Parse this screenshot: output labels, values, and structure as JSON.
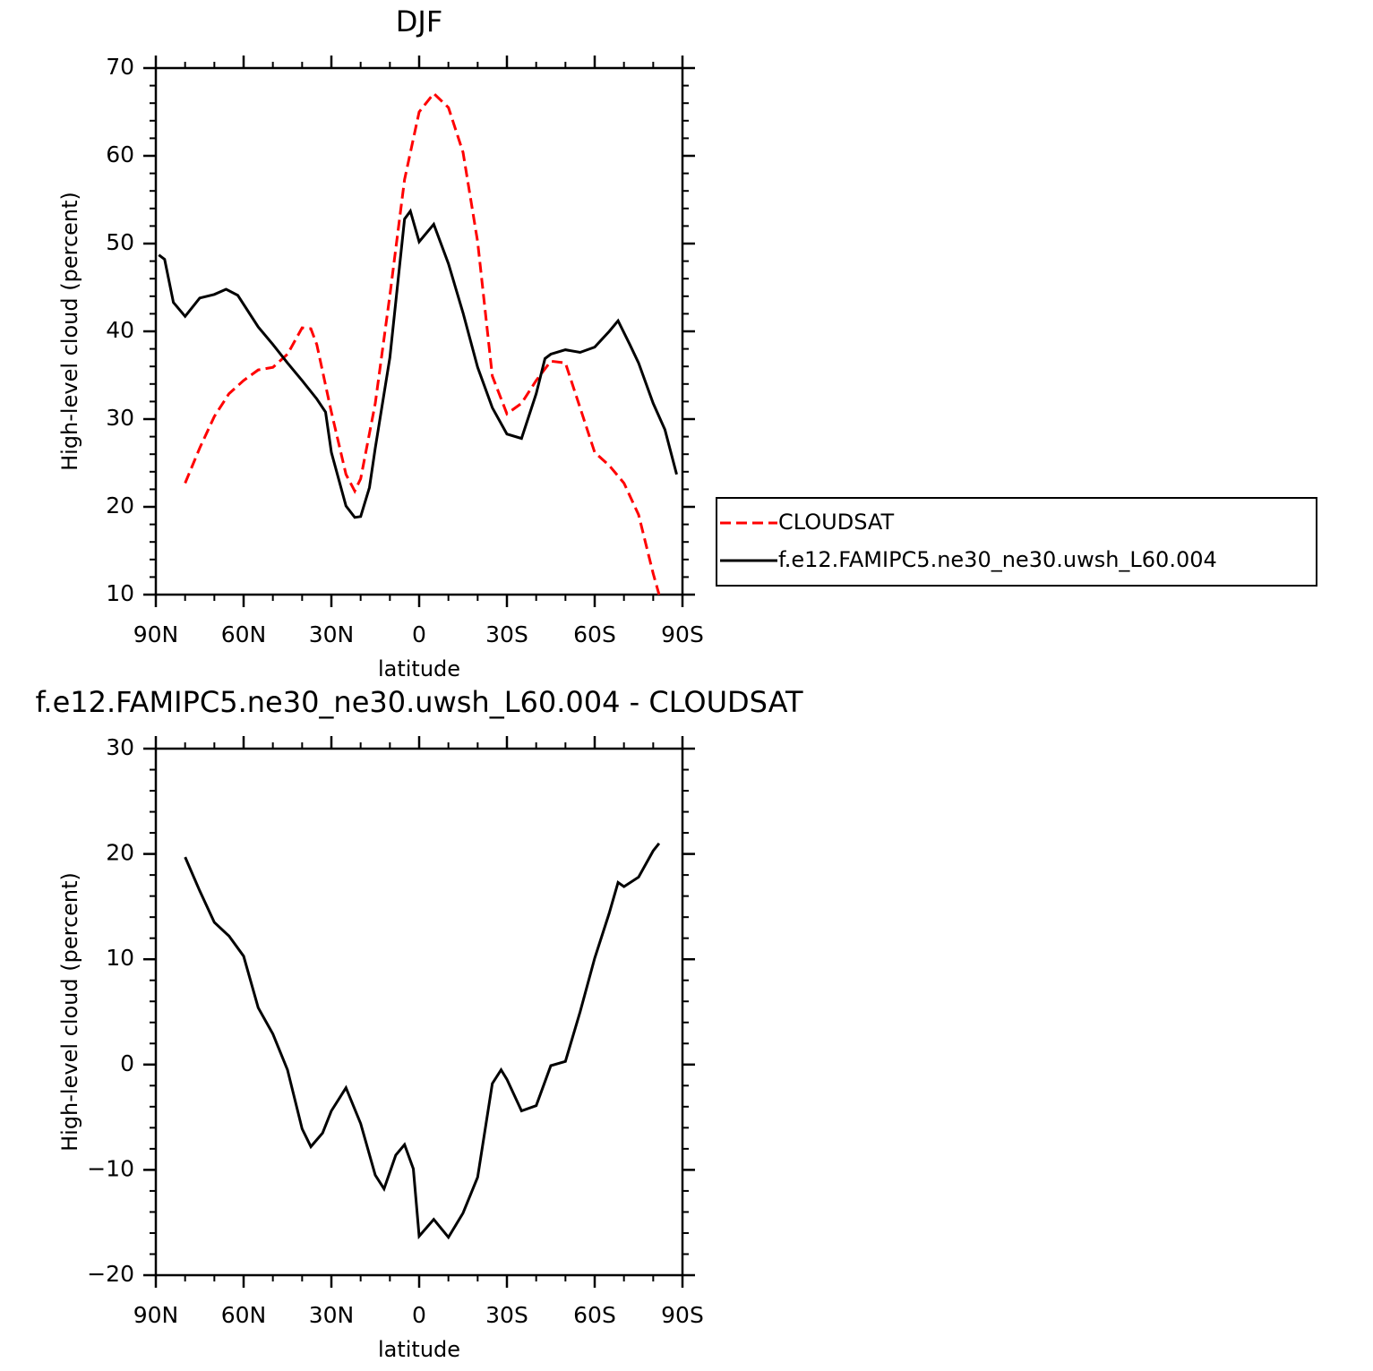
{
  "chart_data": [
    {
      "type": "line",
      "title": "DJF",
      "xlabel": "latitude",
      "ylabel": "High-level cloud (percent)",
      "xlim": [
        90,
        -90
      ],
      "xticks": [
        {
          "value": 90,
          "label": "90N"
        },
        {
          "value": 60,
          "label": "60N"
        },
        {
          "value": 30,
          "label": "30N"
        },
        0,
        {
          "value": -30,
          "label": "30S"
        },
        {
          "value": -60,
          "label": "60S"
        },
        {
          "value": -90,
          "label": "90S"
        }
      ],
      "ylim": [
        10,
        70
      ],
      "yticks": [
        10,
        20,
        30,
        40,
        50,
        60,
        70
      ],
      "legend": "right",
      "series": [
        {
          "name": "CLOUDSAT",
          "color": "#ff0000",
          "line_style": "dashed",
          "x": [
            80,
            75,
            70,
            65,
            60,
            55,
            50,
            45,
            40,
            37,
            35,
            30,
            25,
            22,
            20,
            15,
            10,
            5,
            0,
            -5,
            -10,
            -15,
            -20,
            -25,
            -30,
            -35,
            -40,
            -45,
            -50,
            -55,
            -60,
            -65,
            -70,
            -75,
            -80,
            -82
          ],
          "values": [
            22.7,
            26.7,
            30.3,
            32.9,
            34.4,
            35.6,
            35.9,
            37.4,
            40.4,
            40.3,
            38.5,
            30.8,
            23.7,
            21.8,
            23.2,
            31.8,
            44.1,
            57.3,
            65,
            67.1,
            65.5,
            60.4,
            50.2,
            34.9,
            30.6,
            31.8,
            34.4,
            36.6,
            36.4,
            31.3,
            26.2,
            24.7,
            22.7,
            19.1,
            12.4,
            10
          ]
        },
        {
          "name": "f.e12.FAMIPC5.ne30_ne30.uwsh_L60.004",
          "color": "#000000",
          "line_style": "solid",
          "x": [
            89,
            87,
            84,
            80,
            75,
            70,
            66,
            62,
            55,
            50,
            45,
            40,
            35,
            32,
            30,
            25,
            22,
            20,
            17,
            15,
            10,
            5,
            3,
            0,
            -5,
            -10,
            -15,
            -20,
            -25,
            -30,
            -35,
            -40,
            -43,
            -45,
            -50,
            -55,
            -60,
            -65,
            -68,
            -72,
            -75,
            -80,
            -84,
            -88
          ],
          "values": [
            48.7,
            48.2,
            43.3,
            41.7,
            43.8,
            44.2,
            44.8,
            44.1,
            40.5,
            38.5,
            36.4,
            34.4,
            32.3,
            30.8,
            26.2,
            20.1,
            18.8,
            18.9,
            22.2,
            26.7,
            37,
            52.8,
            53.7,
            50.2,
            52.2,
            47.7,
            42.1,
            35.9,
            31.3,
            28.3,
            27.8,
            32.9,
            36.9,
            37.4,
            37.9,
            37.6,
            38.2,
            40,
            41.2,
            38.5,
            36.4,
            31.8,
            28.8,
            23.7
          ]
        }
      ]
    },
    {
      "type": "line",
      "title": "f.e12.FAMIPC5.ne30_ne30.uwsh_L60.004 - CLOUDSAT",
      "xlabel": "latitude",
      "ylabel": "High-level cloud (percent)",
      "xlim": [
        90,
        -90
      ],
      "xticks": [
        {
          "value": 90,
          "label": "90N"
        },
        {
          "value": 60,
          "label": "60N"
        },
        {
          "value": 30,
          "label": "30N"
        },
        0,
        {
          "value": -30,
          "label": "30S"
        },
        {
          "value": -60,
          "label": "60S"
        },
        {
          "value": -90,
          "label": "90S"
        }
      ],
      "ylim": [
        -20,
        30
      ],
      "yticks": [
        {
          "value": -20,
          "label": "−20"
        },
        {
          "value": -10,
          "label": "−10"
        },
        0,
        10,
        20,
        30
      ],
      "series": [
        {
          "color": "#000000",
          "line_style": "solid",
          "x": [
            80,
            75,
            70,
            65,
            60,
            55,
            50,
            45,
            40,
            37,
            33,
            30,
            25,
            20,
            15,
            12,
            8,
            5,
            2,
            0,
            -5,
            -10,
            -15,
            -20,
            -25,
            -28,
            -30,
            -35,
            -40,
            -45,
            -50,
            -55,
            -60,
            -65,
            -68,
            -70,
            -75,
            -80,
            -82
          ],
          "values": [
            19.7,
            16.5,
            13.5,
            12.2,
            10.3,
            5.4,
            2.9,
            -0.5,
            -6.1,
            -7.8,
            -6.5,
            -4.4,
            -2.2,
            -5.6,
            -10.5,
            -11.8,
            -8.6,
            -7.6,
            -9.9,
            -16.3,
            -14.7,
            -16.4,
            -14.1,
            -10.7,
            -1.8,
            -0.5,
            -1.4,
            -4.4,
            -3.9,
            -0.1,
            0.3,
            5,
            10.1,
            14.4,
            17.3,
            16.9,
            17.8,
            20.3,
            21
          ]
        }
      ]
    }
  ]
}
